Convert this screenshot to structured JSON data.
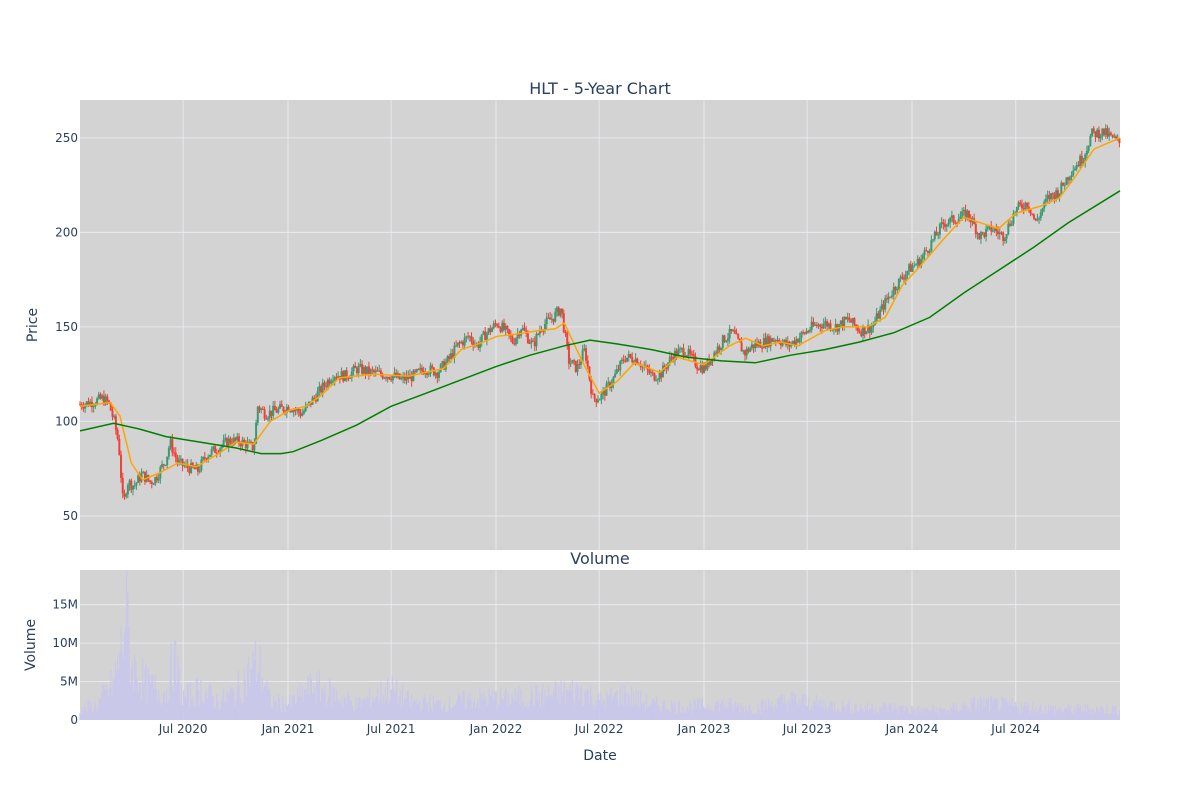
{
  "chart_data": [
    {
      "type": "candlestick",
      "title": "HLT - 5-Year Chart",
      "ylabel": "Price",
      "xlabel": "",
      "xlim": [
        "2020-01-02",
        "2024-12-31"
      ],
      "ylim": [
        32,
        270
      ],
      "yticks": [
        50,
        100,
        150,
        200,
        250
      ],
      "grid": true,
      "legend": "none",
      "colors": {
        "background": "#d3d3d3",
        "grid": "#e8e8ef",
        "up": "#3d9970",
        "down": "#ef4136",
        "ma_short": "#ffa500",
        "ma_long": "#008000"
      },
      "close_series": [
        [
          "2020-01-02",
          109
        ],
        [
          "2020-01-20",
          110
        ],
        [
          "2020-02-10",
          112
        ],
        [
          "2020-02-21",
          110
        ],
        [
          "2020-03-02",
          100
        ],
        [
          "2020-03-10",
          88
        ],
        [
          "2020-03-18",
          55
        ],
        [
          "2020-03-25",
          68
        ],
        [
          "2020-04-06",
          66
        ],
        [
          "2020-04-20",
          72
        ],
        [
          "2020-05-04",
          68
        ],
        [
          "2020-05-14",
          70
        ],
        [
          "2020-06-01",
          80
        ],
        [
          "2020-06-08",
          89
        ],
        [
          "2020-06-22",
          78
        ],
        [
          "2020-07-06",
          76
        ],
        [
          "2020-07-27",
          74
        ],
        [
          "2020-08-10",
          82
        ],
        [
          "2020-08-31",
          86
        ],
        [
          "2020-09-21",
          90
        ],
        [
          "2020-10-12",
          89
        ],
        [
          "2020-11-02",
          86
        ],
        [
          "2020-11-09",
          108
        ],
        [
          "2020-11-23",
          104
        ],
        [
          "2020-12-14",
          106
        ],
        [
          "2021-01-04",
          108
        ],
        [
          "2021-01-25",
          104
        ],
        [
          "2021-02-15",
          112
        ],
        [
          "2021-03-08",
          120
        ],
        [
          "2021-03-22",
          125
        ],
        [
          "2021-04-12",
          124
        ],
        [
          "2021-05-03",
          128
        ],
        [
          "2021-05-24",
          126
        ],
        [
          "2021-06-14",
          125
        ],
        [
          "2021-07-05",
          124
        ],
        [
          "2021-07-19",
          122
        ],
        [
          "2021-08-09",
          124
        ],
        [
          "2021-08-30",
          128
        ],
        [
          "2021-09-20",
          126
        ],
        [
          "2021-10-11",
          133
        ],
        [
          "2021-10-25",
          140
        ],
        [
          "2021-11-15",
          145
        ],
        [
          "2021-11-29",
          140
        ],
        [
          "2021-12-13",
          146
        ],
        [
          "2022-01-03",
          152
        ],
        [
          "2022-01-17",
          148
        ],
        [
          "2022-01-31",
          142
        ],
        [
          "2022-02-14",
          150
        ],
        [
          "2022-03-07",
          140
        ],
        [
          "2022-03-21",
          150
        ],
        [
          "2022-04-11",
          155
        ],
        [
          "2022-04-25",
          160
        ],
        [
          "2022-05-09",
          132
        ],
        [
          "2022-05-23",
          128
        ],
        [
          "2022-06-06",
          138
        ],
        [
          "2022-06-20",
          112
        ],
        [
          "2022-07-04",
          113
        ],
        [
          "2022-07-25",
          122
        ],
        [
          "2022-08-15",
          134
        ],
        [
          "2022-09-05",
          133
        ],
        [
          "2022-09-19",
          128
        ],
        [
          "2022-10-03",
          124
        ],
        [
          "2022-10-17",
          125
        ],
        [
          "2022-11-07",
          135
        ],
        [
          "2022-11-28",
          138
        ],
        [
          "2022-12-19",
          130
        ],
        [
          "2023-01-02",
          128
        ],
        [
          "2023-01-16",
          135
        ],
        [
          "2023-02-06",
          144
        ],
        [
          "2023-02-20",
          147
        ],
        [
          "2023-03-13",
          136
        ],
        [
          "2023-03-27",
          140
        ],
        [
          "2023-04-17",
          142
        ],
        [
          "2023-05-08",
          144
        ],
        [
          "2023-05-29",
          140
        ],
        [
          "2023-06-19",
          145
        ],
        [
          "2023-07-10",
          150
        ],
        [
          "2023-07-31",
          152
        ],
        [
          "2023-08-21",
          150
        ],
        [
          "2023-09-11",
          154
        ],
        [
          "2023-10-02",
          148
        ],
        [
          "2023-10-23",
          150
        ],
        [
          "2023-11-13",
          162
        ],
        [
          "2023-12-04",
          172
        ],
        [
          "2023-12-25",
          180
        ],
        [
          "2024-01-15",
          185
        ],
        [
          "2024-02-05",
          195
        ],
        [
          "2024-02-26",
          205
        ],
        [
          "2024-03-18",
          207
        ],
        [
          "2024-04-08",
          210
        ],
        [
          "2024-04-29",
          198
        ],
        [
          "2024-05-20",
          202
        ],
        [
          "2024-06-10",
          198
        ],
        [
          "2024-07-01",
          212
        ],
        [
          "2024-07-22",
          216
        ],
        [
          "2024-08-05",
          205
        ],
        [
          "2024-08-26",
          218
        ],
        [
          "2024-09-16",
          222
        ],
        [
          "2024-10-07",
          233
        ],
        [
          "2024-10-28",
          240
        ],
        [
          "2024-11-11",
          252
        ],
        [
          "2024-12-02",
          253
        ],
        [
          "2024-12-16",
          250
        ],
        [
          "2024-12-31",
          247
        ]
      ],
      "ma_short": [
        [
          "2020-01-02",
          108
        ],
        [
          "2020-02-24",
          110
        ],
        [
          "2020-03-12",
          103
        ],
        [
          "2020-04-01",
          78
        ],
        [
          "2020-04-21",
          69
        ],
        [
          "2020-05-22",
          73
        ],
        [
          "2020-06-22",
          78
        ],
        [
          "2020-07-24",
          76
        ],
        [
          "2020-09-01",
          83
        ],
        [
          "2020-10-01",
          89
        ],
        [
          "2020-11-02",
          88
        ],
        [
          "2020-12-01",
          100
        ],
        [
          "2021-01-04",
          106
        ],
        [
          "2021-02-01",
          108
        ],
        [
          "2021-03-01",
          114
        ],
        [
          "2021-04-01",
          123
        ],
        [
          "2021-06-01",
          125
        ],
        [
          "2021-08-01",
          124
        ],
        [
          "2021-10-01",
          128
        ],
        [
          "2021-11-01",
          138
        ],
        [
          "2021-12-01",
          141
        ],
        [
          "2022-01-03",
          145
        ],
        [
          "2022-02-01",
          146
        ],
        [
          "2022-03-15",
          148
        ],
        [
          "2022-04-15",
          149
        ],
        [
          "2022-05-01",
          152
        ],
        [
          "2022-06-01",
          132
        ],
        [
          "2022-07-01",
          115
        ],
        [
          "2022-08-01",
          121
        ],
        [
          "2022-09-01",
          131
        ],
        [
          "2022-10-15",
          126
        ],
        [
          "2022-11-15",
          134
        ],
        [
          "2023-01-01",
          130
        ],
        [
          "2023-02-15",
          140
        ],
        [
          "2023-03-15",
          144
        ],
        [
          "2023-04-15",
          140
        ],
        [
          "2023-05-15",
          142
        ],
        [
          "2023-06-15",
          140
        ],
        [
          "2023-08-01",
          148
        ],
        [
          "2023-09-01",
          150
        ],
        [
          "2023-10-15",
          150
        ],
        [
          "2023-11-15",
          155
        ],
        [
          "2023-12-15",
          172
        ],
        [
          "2024-01-15",
          182
        ],
        [
          "2024-03-01",
          198
        ],
        [
          "2024-04-01",
          208
        ],
        [
          "2024-05-01",
          205
        ],
        [
          "2024-06-01",
          202
        ],
        [
          "2024-07-01",
          210
        ],
        [
          "2024-08-15",
          214
        ],
        [
          "2024-09-15",
          218
        ],
        [
          "2024-10-15",
          230
        ],
        [
          "2024-11-15",
          244
        ],
        [
          "2024-12-31",
          250
        ]
      ],
      "ma_long": [
        [
          "2020-01-02",
          95
        ],
        [
          "2020-03-01",
          99
        ],
        [
          "2020-04-15",
          96
        ],
        [
          "2020-06-01",
          92
        ],
        [
          "2020-08-01",
          89
        ],
        [
          "2020-10-01",
          86
        ],
        [
          "2020-11-15",
          83
        ],
        [
          "2020-12-20",
          83
        ],
        [
          "2021-01-10",
          84
        ],
        [
          "2021-03-01",
          90
        ],
        [
          "2021-05-01",
          98
        ],
        [
          "2021-07-01",
          108
        ],
        [
          "2021-09-01",
          115
        ],
        [
          "2021-11-01",
          122
        ],
        [
          "2022-01-01",
          129
        ],
        [
          "2022-03-01",
          135
        ],
        [
          "2022-05-01",
          140
        ],
        [
          "2022-06-15",
          143
        ],
        [
          "2022-08-01",
          141
        ],
        [
          "2022-10-01",
          138
        ],
        [
          "2022-12-01",
          134
        ],
        [
          "2023-02-01",
          132
        ],
        [
          "2023-04-01",
          131
        ],
        [
          "2023-06-01",
          135
        ],
        [
          "2023-08-01",
          138
        ],
        [
          "2023-10-01",
          142
        ],
        [
          "2023-12-01",
          147
        ],
        [
          "2024-02-01",
          155
        ],
        [
          "2024-04-01",
          168
        ],
        [
          "2024-06-01",
          180
        ],
        [
          "2024-08-01",
          192
        ],
        [
          "2024-10-01",
          205
        ],
        [
          "2024-12-31",
          222
        ]
      ]
    },
    {
      "type": "bar",
      "title": "Volume",
      "ylabel": "Volume",
      "xlabel": "Date",
      "ylim": [
        0,
        19500000
      ],
      "yticks": [
        0,
        5000000,
        10000000,
        15000000
      ],
      "ytick_labels": [
        "0",
        "5M",
        "10M",
        "15M"
      ],
      "xticks": [
        "2020-07-01",
        "2021-01-01",
        "2021-07-01",
        "2022-01-01",
        "2022-07-01",
        "2023-01-01",
        "2023-07-01",
        "2024-01-01",
        "2024-07-01"
      ],
      "xtick_labels": [
        "Jul 2020",
        "Jan 2021",
        "Jul 2021",
        "Jan 2022",
        "Jul 2022",
        "Jan 2023",
        "Jul 2023",
        "Jan 2024",
        "Jul 2024"
      ],
      "grid": true,
      "colors": {
        "background": "#d3d3d3",
        "bar": "#c9c7ea"
      },
      "volume_series": [
        [
          "2020-01-02",
          1800000
        ],
        [
          "2020-02-01",
          2500000
        ],
        [
          "2020-03-01",
          6000000
        ],
        [
          "2020-03-16",
          12000000
        ],
        [
          "2020-03-23",
          19000000
        ],
        [
          "2020-04-01",
          9000000
        ],
        [
          "2020-05-01",
          5500000
        ],
        [
          "2020-06-01",
          4500000
        ],
        [
          "2020-06-15",
          10000000
        ],
        [
          "2020-07-01",
          3500000
        ],
        [
          "2020-08-01",
          5000000
        ],
        [
          "2020-09-01",
          3000000
        ],
        [
          "2020-10-01",
          4500000
        ],
        [
          "2020-11-09",
          9500000
        ],
        [
          "2020-12-01",
          3000000
        ],
        [
          "2021-01-01",
          2500000
        ],
        [
          "2021-02-15",
          5500000
        ],
        [
          "2021-03-15",
          4500000
        ],
        [
          "2021-05-01",
          2500000
        ],
        [
          "2021-07-01",
          5000000
        ],
        [
          "2021-08-01",
          3000000
        ],
        [
          "2021-10-01",
          2500000
        ],
        [
          "2021-12-01",
          3500000
        ],
        [
          "2022-02-01",
          3500000
        ],
        [
          "2022-04-01",
          4000000
        ],
        [
          "2022-06-01",
          4800000
        ],
        [
          "2022-07-01",
          3000000
        ],
        [
          "2022-08-15",
          4200000
        ],
        [
          "2022-10-01",
          2500000
        ],
        [
          "2022-12-01",
          2200000
        ],
        [
          "2023-02-01",
          2500000
        ],
        [
          "2023-04-01",
          2000000
        ],
        [
          "2023-06-01",
          3200000
        ],
        [
          "2023-08-01",
          2500000
        ],
        [
          "2023-10-01",
          2000000
        ],
        [
          "2023-12-01",
          2000000
        ],
        [
          "2024-01-01",
          1600000
        ],
        [
          "2024-03-01",
          1600000
        ],
        [
          "2024-05-01",
          2800000
        ],
        [
          "2024-07-01",
          2200000
        ],
        [
          "2024-09-01",
          1800000
        ],
        [
          "2024-11-01",
          1800000
        ],
        [
          "2024-12-31",
          1700000
        ]
      ]
    }
  ]
}
